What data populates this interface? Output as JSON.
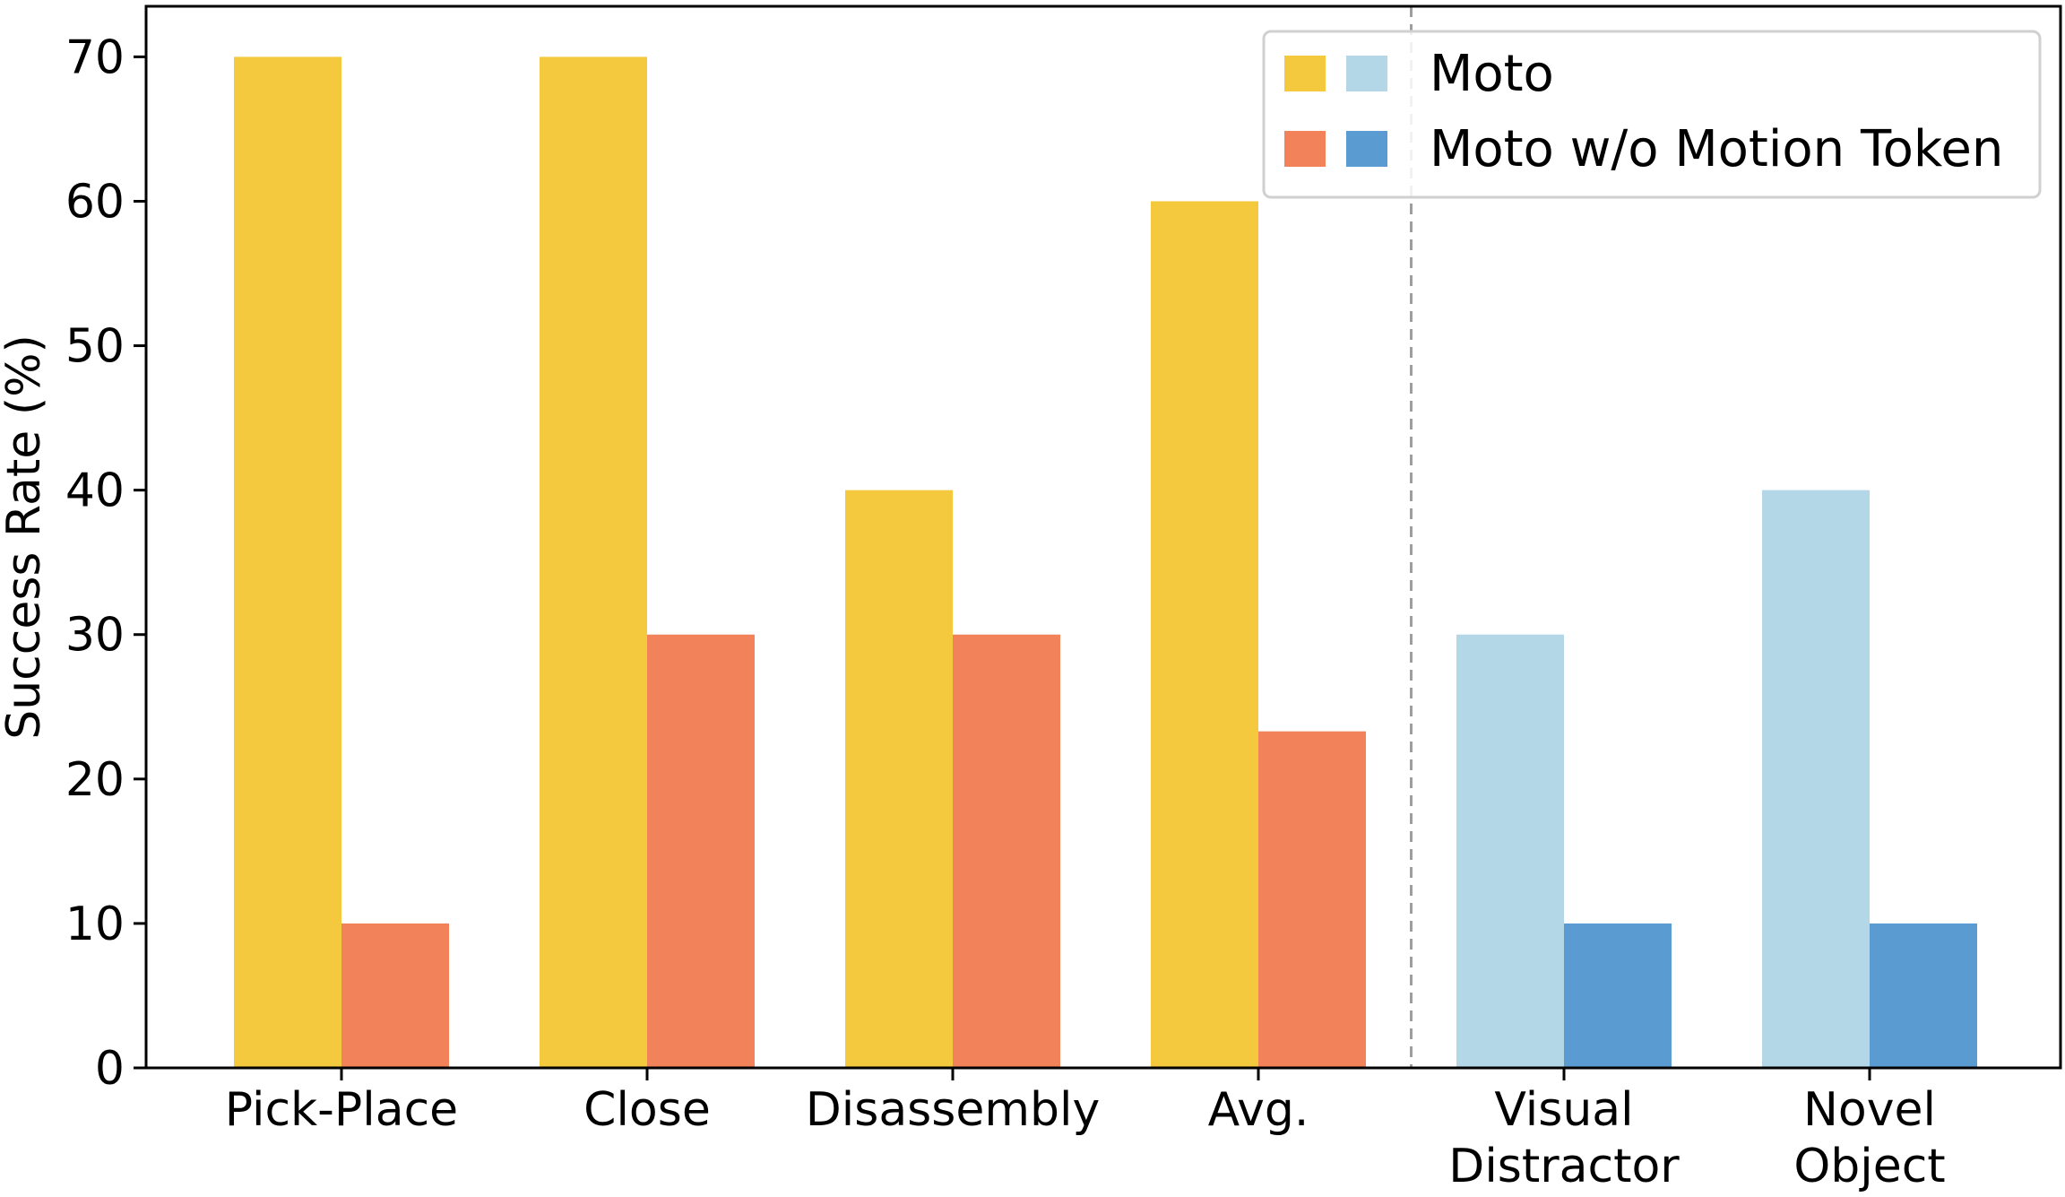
{
  "chart_data": {
    "type": "bar",
    "categories": [
      "Pick-Place",
      "Close",
      "Disassembly",
      "Avg.",
      "Visual\nDistractor",
      "Novel\nObject"
    ],
    "series": [
      {
        "name": "Moto",
        "values": [
          70,
          70,
          40,
          60,
          30,
          40
        ]
      },
      {
        "name": "Moto w/o Motion Token",
        "values": [
          10,
          30,
          30,
          23.3,
          10,
          10
        ]
      }
    ],
    "category_groups": [
      {
        "categories": [
          0,
          1,
          2,
          3
        ],
        "colors": [
          "#F4C93E",
          "#F2825A"
        ]
      },
      {
        "categories": [
          4,
          5
        ],
        "colors": [
          "#B3D7E6",
          "#5A9BD2"
        ]
      }
    ],
    "divider_after_category": 3,
    "ylabel": "Success Rate (%)",
    "xlabel": "",
    "ylim": [
      0,
      73.5
    ],
    "yticks": [
      0,
      10,
      20,
      30,
      40,
      50,
      60,
      70
    ],
    "grid": false,
    "legend_position": "top-right"
  }
}
